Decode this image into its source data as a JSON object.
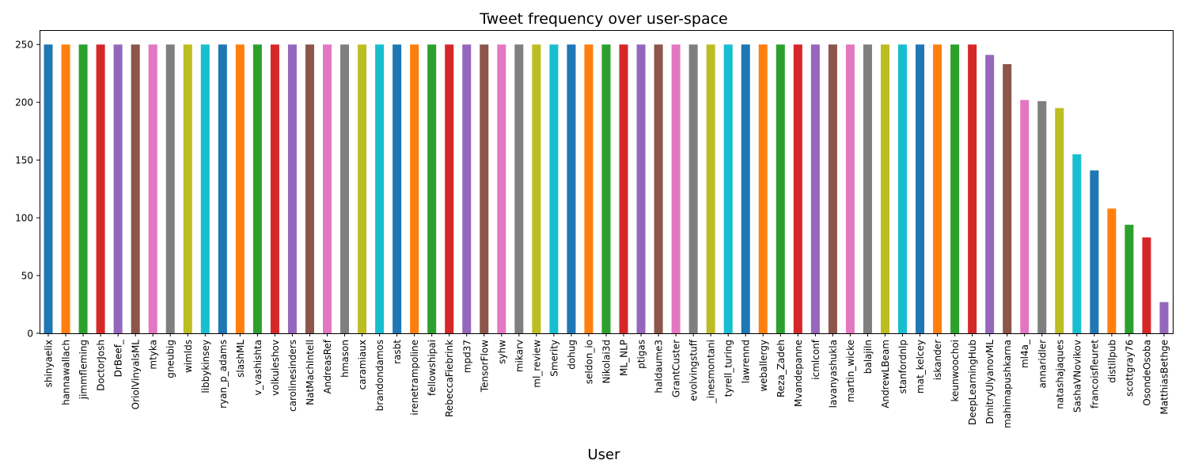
{
  "chart_data": {
    "type": "bar",
    "title": "Tweet frequency over user-space",
    "xlabel": "User",
    "ylabel": "",
    "ylim": [
      0,
      262.5
    ],
    "yticks": [
      0,
      50,
      100,
      150,
      200,
      250
    ],
    "grid": false,
    "legend": "none",
    "categories": [
      "shinyaelix",
      "hannawallach",
      "jimmfleming",
      "DoctorJosh",
      "DrBeef_",
      "OriolVinyalsML",
      "mtyka",
      "gneubig",
      "wimlds",
      "libbykinsey",
      "ryan_p_adams",
      "slashML",
      "v_vashishta",
      "volkuleshov",
      "carolinesinders",
      "NatMachIntell",
      "AndreasRef",
      "hmason",
      "caramiaux",
      "brandondamos",
      "rasbt",
      "irenetrampoline",
      "fellowshipai",
      "RebeccaFiebrink",
      "mpd37",
      "TensorFlow",
      "syhw",
      "mikarv",
      "ml_review",
      "Smerity",
      "dohug",
      "seldon_io",
      "Nikolai3d",
      "ML_NLP",
      "ptigas",
      "haldaume3",
      "GrantCuster",
      "evolvingstuff",
      "_inesmontani",
      "tyrell_turing",
      "lawrennd",
      "weballergy",
      "Reza_Zadeh",
      "Mvandepanne",
      "icmlconf",
      "lavanyashukla",
      "martin_wicke",
      "balajiln",
      "AndrewLBeam",
      "stanfordnlp",
      "mat_kelcey",
      "iskander",
      "keunwoochoi",
      "DeepLearningHub",
      "DmitryUlyanovML",
      "mahimapushkarna",
      "ml4a_",
      "annaridler",
      "natashajaques",
      "SashaVNovikov",
      "francoisfleuret",
      "distillpub",
      "scottgray76",
      "OsondeOsoba",
      "MatthiasBethge"
    ],
    "values": [
      250,
      250,
      250,
      250,
      250,
      250,
      250,
      250,
      250,
      250,
      250,
      250,
      250,
      250,
      250,
      250,
      250,
      250,
      250,
      250,
      250,
      250,
      250,
      250,
      250,
      250,
      250,
      250,
      250,
      250,
      250,
      250,
      250,
      250,
      250,
      250,
      250,
      250,
      250,
      250,
      250,
      250,
      250,
      250,
      250,
      250,
      250,
      250,
      250,
      250,
      250,
      250,
      250,
      250,
      241,
      233,
      202,
      201,
      195,
      155,
      141,
      108,
      94,
      83,
      27
    ],
    "colors": [
      "#1f77b4",
      "#ff7f0e",
      "#2ca02c",
      "#d62728",
      "#9467bd",
      "#8c564b",
      "#e377c2",
      "#7f7f7f",
      "#bcbd22",
      "#17becf"
    ]
  }
}
